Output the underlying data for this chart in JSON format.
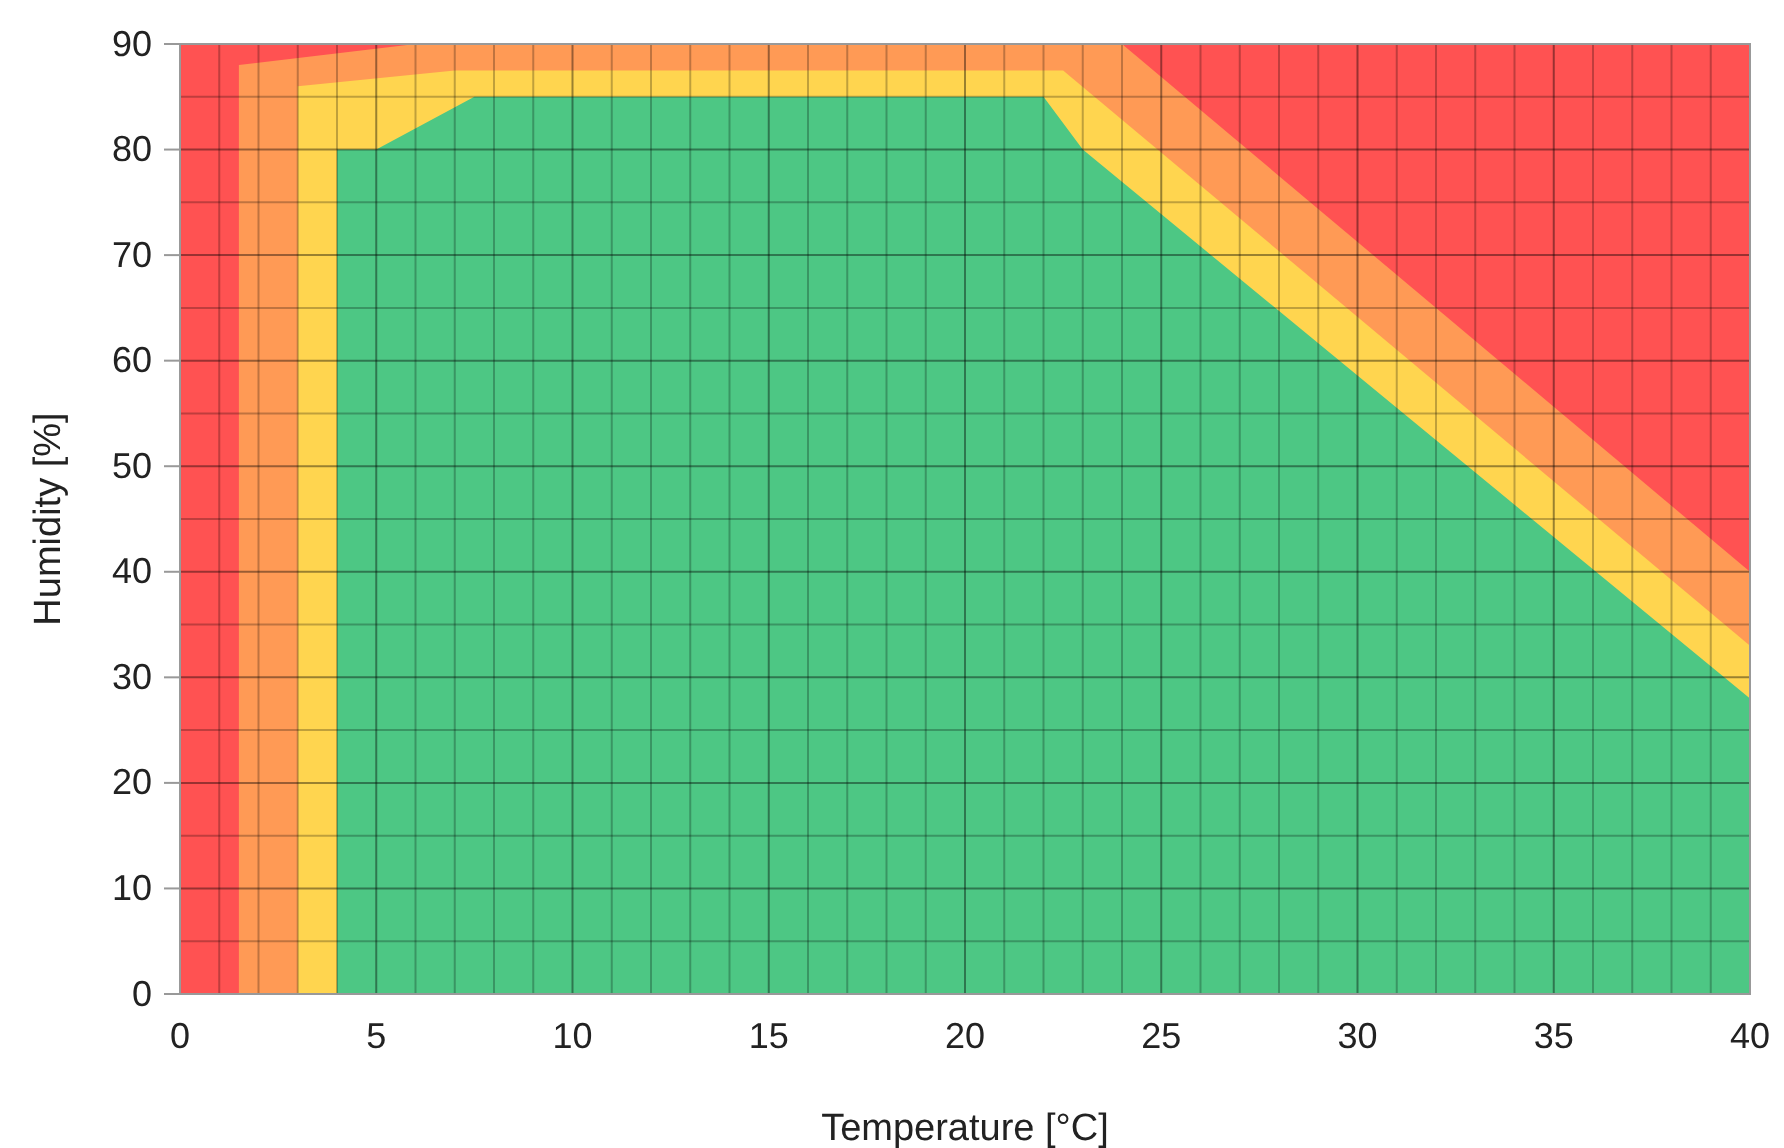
{
  "chart_data": {
    "type": "area",
    "xlabel": "Temperature [°C]",
    "ylabel": "Humidity [%]",
    "xlim": [
      0,
      40
    ],
    "ylim": [
      0,
      90
    ],
    "xticks": [
      0,
      {
        "value": 1,
        "label": null
      },
      {
        "value": 2,
        "label": null
      },
      {
        "value": 3,
        "label": null
      },
      {
        "value": 4,
        "label": null
      },
      5,
      {
        "value": 6,
        "label": null
      },
      {
        "value": 7,
        "label": null
      },
      {
        "value": 8,
        "label": null
      },
      {
        "value": 9,
        "label": null
      },
      10,
      {
        "value": 11,
        "label": null
      },
      {
        "value": 12,
        "label": null
      },
      {
        "value": 13,
        "label": null
      },
      {
        "value": 14,
        "label": null
      },
      15,
      {
        "value": 16,
        "label": null
      },
      {
        "value": 17,
        "label": null
      },
      {
        "value": 18,
        "label": null
      },
      {
        "value": 19,
        "label": null
      },
      20,
      {
        "value": 21,
        "label": null
      },
      {
        "value": 22,
        "label": null
      },
      {
        "value": 23,
        "label": null
      },
      {
        "value": 24,
        "label": null
      },
      25,
      {
        "value": 26,
        "label": null
      },
      {
        "value": 27,
        "label": null
      },
      {
        "value": 28,
        "label": null
      },
      {
        "value": 29,
        "label": null
      },
      30,
      {
        "value": 31,
        "label": null
      },
      {
        "value": 32,
        "label": null
      },
      {
        "value": 33,
        "label": null
      },
      {
        "value": 34,
        "label": null
      },
      35,
      {
        "value": 36,
        "label": null
      },
      {
        "value": 37,
        "label": null
      },
      {
        "value": 38,
        "label": null
      },
      {
        "value": 39,
        "label": null
      },
      40
    ],
    "yticks": [
      0,
      {
        "value": 5,
        "label": null
      },
      10,
      {
        "value": 15,
        "label": null
      },
      20,
      {
        "value": 25,
        "label": null
      },
      30,
      {
        "value": 35,
        "label": null
      },
      40,
      {
        "value": 45,
        "label": null
      },
      50,
      {
        "value": 55,
        "label": null
      },
      60,
      {
        "value": 65,
        "label": null
      },
      70,
      {
        "value": 75,
        "label": null
      },
      80,
      {
        "value": 85,
        "label": null
      },
      90
    ],
    "grid": true,
    "bands": [
      {
        "axis": "x",
        "from": 0,
        "to": 40,
        "color": "#ff5252"
      }
    ],
    "series": [
      {
        "color": "#ff9a55",
        "x": [
          1.5,
          6,
          24,
          40
        ],
        "values": [
          88,
          90,
          90,
          40
        ]
      },
      {
        "color": "#ffd54f",
        "x": [
          3,
          7,
          22.5,
          40
        ],
        "values": [
          86,
          87.5,
          87.5,
          33
        ]
      },
      {
        "color": "#4dc784",
        "x": [
          4,
          5,
          7.5,
          22,
          23,
          40
        ],
        "values": [
          80,
          80,
          85,
          85,
          80,
          28
        ]
      }
    ]
  }
}
